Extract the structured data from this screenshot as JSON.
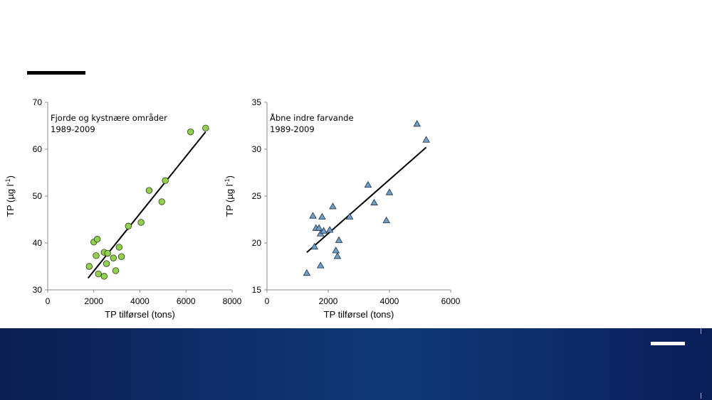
{
  "chart_data": [
    {
      "type": "scatter",
      "title": "",
      "annotation_lines": [
        "Fjorde og kystnære områder",
        "1989-2009"
      ],
      "xlabel": "TP tilførsel (tons)",
      "ylabel": "TP (µg l-1)",
      "ylabel_main": "TP (µg l",
      "ylabel_sup": "-1",
      "ylabel_close": ")",
      "xlim": [
        0,
        8000
      ],
      "ylim": [
        30,
        70
      ],
      "xticks": [
        0,
        2000,
        4000,
        6000,
        8000
      ],
      "yticks": [
        30,
        40,
        50,
        60,
        70
      ],
      "marker": "circle",
      "marker_color": "#92d050",
      "series": [
        {
          "points": [
            {
              "x": 1800,
              "y": 35.0
            },
            {
              "x": 2000,
              "y": 40.2
            },
            {
              "x": 2100,
              "y": 37.3
            },
            {
              "x": 2150,
              "y": 40.8
            },
            {
              "x": 2200,
              "y": 33.4
            },
            {
              "x": 2450,
              "y": 38.0
            },
            {
              "x": 2450,
              "y": 32.9
            },
            {
              "x": 2550,
              "y": 35.6
            },
            {
              "x": 2600,
              "y": 37.8
            },
            {
              "x": 2850,
              "y": 36.8
            },
            {
              "x": 2950,
              "y": 34.1
            },
            {
              "x": 3100,
              "y": 39.1
            },
            {
              "x": 3200,
              "y": 37.1
            },
            {
              "x": 3500,
              "y": 43.6
            },
            {
              "x": 4050,
              "y": 44.4
            },
            {
              "x": 4400,
              "y": 51.2
            },
            {
              "x": 4950,
              "y": 48.8
            },
            {
              "x": 5100,
              "y": 53.3
            },
            {
              "x": 6200,
              "y": 63.7
            },
            {
              "x": 6850,
              "y": 64.5
            }
          ]
        }
      ],
      "trendline": {
        "x": [
          1750,
          6850
        ],
        "y": [
          32.5,
          63.7
        ]
      }
    },
    {
      "type": "scatter",
      "title": "",
      "annotation_lines": [
        "Åbne indre farvande",
        "1989-2009"
      ],
      "xlabel": "TP tilførsel (tons)",
      "ylabel": "TP (µg l-1)",
      "ylabel_main": "TP (µg l",
      "ylabel_sup": "-1",
      "ylabel_close": ")",
      "xlim": [
        0,
        6000
      ],
      "ylim": [
        15,
        35
      ],
      "xticks": [
        0,
        2000,
        4000,
        6000
      ],
      "yticks": [
        15,
        20,
        25,
        30,
        35
      ],
      "marker": "triangle",
      "marker_color": "#6f9fc4",
      "series": [
        {
          "points": [
            {
              "x": 1300,
              "y": 16.8
            },
            {
              "x": 1500,
              "y": 22.9
            },
            {
              "x": 1550,
              "y": 19.6
            },
            {
              "x": 1600,
              "y": 21.6
            },
            {
              "x": 1700,
              "y": 21.6
            },
            {
              "x": 1750,
              "y": 17.6
            },
            {
              "x": 1750,
              "y": 21.0
            },
            {
              "x": 1800,
              "y": 22.8
            },
            {
              "x": 1850,
              "y": 21.3
            },
            {
              "x": 2050,
              "y": 21.4
            },
            {
              "x": 2150,
              "y": 23.9
            },
            {
              "x": 2250,
              "y": 19.2
            },
            {
              "x": 2300,
              "y": 18.6
            },
            {
              "x": 2350,
              "y": 20.3
            },
            {
              "x": 2700,
              "y": 22.8
            },
            {
              "x": 3300,
              "y": 26.2
            },
            {
              "x": 3500,
              "y": 24.3
            },
            {
              "x": 3900,
              "y": 22.4
            },
            {
              "x": 4000,
              "y": 25.4
            },
            {
              "x": 4900,
              "y": 32.7
            },
            {
              "x": 5200,
              "y": 31.0
            }
          ]
        }
      ],
      "trendline": {
        "x": [
          1300,
          5200
        ],
        "y": [
          19.0,
          30.2
        ]
      }
    }
  ]
}
